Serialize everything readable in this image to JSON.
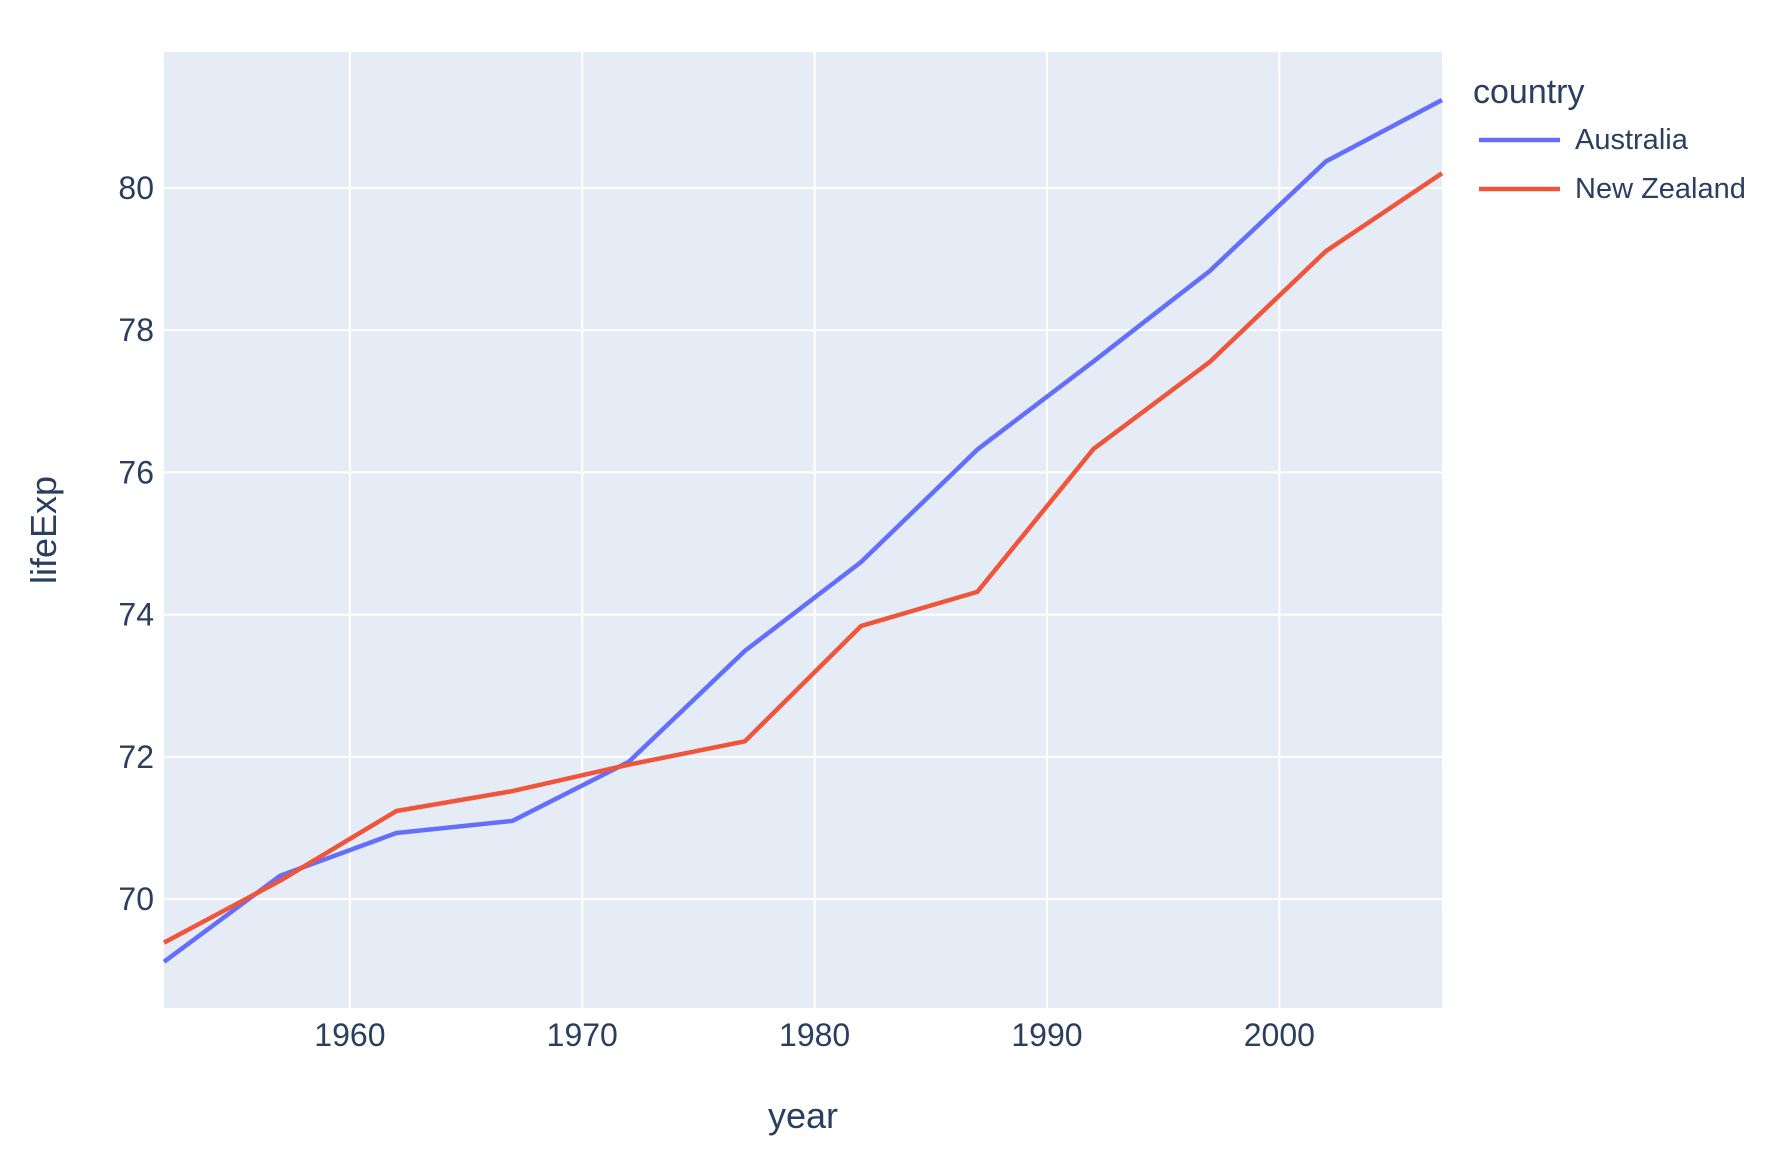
{
  "figure": {
    "background": "#ffffff",
    "plot_background": "#E5ECF6",
    "grid_color": "#ffffff",
    "text_color": "#2a3f5f"
  },
  "legend": {
    "title": "country",
    "items": [
      {
        "label": "Australia",
        "color": "#636EFA"
      },
      {
        "label": "New Zealand",
        "color": "#EF553B"
      }
    ]
  },
  "chart_data": {
    "type": "line",
    "title": "",
    "xlabel": "year",
    "ylabel": "lifeExp",
    "x": [
      1952,
      1957,
      1962,
      1967,
      1972,
      1977,
      1982,
      1987,
      1992,
      1997,
      2002,
      2007
    ],
    "series": [
      {
        "name": "Australia",
        "color": "#636EFA",
        "values": [
          69.12,
          70.33,
          70.93,
          71.1,
          71.93,
          73.49,
          74.74,
          76.32,
          77.56,
          78.83,
          80.37,
          81.235
        ]
      },
      {
        "name": "New Zealand",
        "color": "#EF553B",
        "values": [
          69.39,
          70.26,
          71.24,
          71.52,
          71.89,
          72.22,
          73.84,
          74.32,
          76.33,
          77.55,
          79.11,
          80.204
        ]
      }
    ],
    "xlim": [
      1952,
      2007
    ],
    "ylim": [
      68.47,
      81.91
    ],
    "x_ticks": [
      "1960",
      "1970",
      "1980",
      "1990",
      "2000"
    ],
    "x_tick_values": [
      1960,
      1970,
      1980,
      1990,
      2000
    ],
    "y_ticks": [
      "70",
      "72",
      "74",
      "76",
      "78",
      "80"
    ],
    "y_tick_values": [
      70,
      72,
      74,
      76,
      78,
      80
    ],
    "grid": true,
    "legend_position": "right"
  }
}
